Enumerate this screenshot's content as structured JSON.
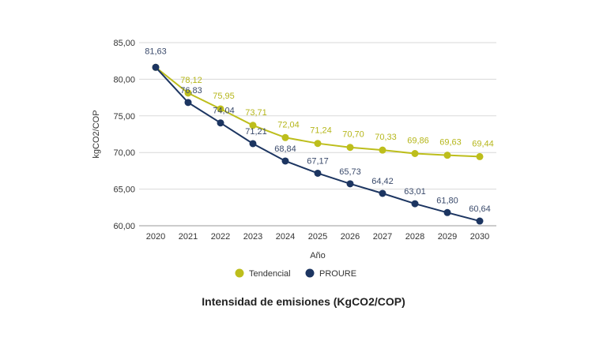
{
  "chart_data": {
    "type": "line",
    "title": "Intensidad de emisiones (KgCO2/COP)",
    "xlabel": "Año",
    "ylabel": "kgCO2/COP",
    "ylim": [
      60,
      85
    ],
    "yticks": [
      "60,00",
      "65,00",
      "70,00",
      "75,00",
      "80,00",
      "85,00"
    ],
    "ytick_values": [
      60,
      65,
      70,
      75,
      80,
      85
    ],
    "grid": true,
    "legend_position": "bottom",
    "categories": [
      "2020",
      "2021",
      "2022",
      "2023",
      "2024",
      "2025",
      "2026",
      "2027",
      "2028",
      "2029",
      "2030"
    ],
    "series": [
      {
        "name": "Tendencial",
        "color": "#bdbe1c",
        "values": [
          81.63,
          78.12,
          75.95,
          73.71,
          72.04,
          71.24,
          70.7,
          70.33,
          69.86,
          69.63,
          69.44
        ],
        "labels": [
          "",
          "78,12",
          "75,95",
          "73,71",
          "72,04",
          "71,24",
          "70,70",
          "70,33",
          "69,86",
          "69,63",
          "69,44"
        ]
      },
      {
        "name": "PROURE",
        "color": "#1c3561",
        "values": [
          81.63,
          76.83,
          74.04,
          71.21,
          68.84,
          67.17,
          65.73,
          64.42,
          63.01,
          61.8,
          60.64
        ],
        "labels": [
          "81,63",
          "76,83",
          "74,04",
          "71,21",
          "68,84",
          "67,17",
          "65,73",
          "64,42",
          "63,01",
          "61,80",
          "60,64"
        ]
      }
    ]
  }
}
